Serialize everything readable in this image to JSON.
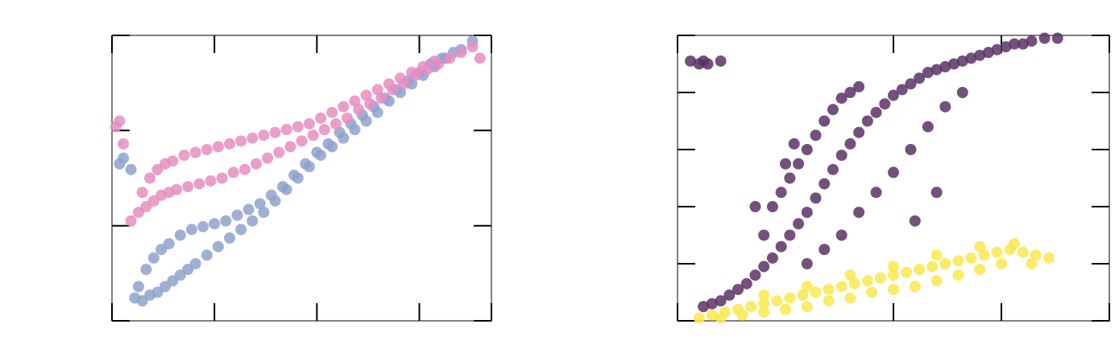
{
  "chart_data": [
    {
      "type": "scatter",
      "title": "",
      "xlabel": "",
      "ylabel": "",
      "xlim": [
        0,
        1
      ],
      "ylim": [
        0,
        1
      ],
      "grid": false,
      "legend": "none",
      "tick_labels_shown": false,
      "series": [
        {
          "color": "#8ea2cc",
          "points": [
            [
              0.06,
              0.08
            ],
            [
              0.08,
              0.07
            ],
            [
              0.1,
              0.09
            ],
            [
              0.12,
              0.1
            ],
            [
              0.14,
              0.12
            ],
            [
              0.16,
              0.14
            ],
            [
              0.18,
              0.16
            ],
            [
              0.2,
              0.18
            ],
            [
              0.22,
              0.2
            ],
            [
              0.25,
              0.23
            ],
            [
              0.28,
              0.26
            ],
            [
              0.31,
              0.29
            ],
            [
              0.34,
              0.32
            ],
            [
              0.37,
              0.35
            ],
            [
              0.4,
              0.38
            ],
            [
              0.43,
              0.42
            ],
            [
              0.46,
              0.46
            ],
            [
              0.49,
              0.5
            ],
            [
              0.52,
              0.54
            ],
            [
              0.55,
              0.58
            ],
            [
              0.58,
              0.61
            ],
            [
              0.61,
              0.64
            ],
            [
              0.64,
              0.67
            ],
            [
              0.67,
              0.7
            ],
            [
              0.7,
              0.73
            ],
            [
              0.73,
              0.77
            ],
            [
              0.76,
              0.8
            ],
            [
              0.79,
              0.83
            ],
            [
              0.82,
              0.86
            ],
            [
              0.85,
              0.89
            ],
            [
              0.88,
              0.92
            ],
            [
              0.9,
              0.94
            ],
            [
              0.92,
              0.95
            ],
            [
              0.95,
              0.98
            ],
            [
              0.07,
              0.12
            ],
            [
              0.09,
              0.18
            ],
            [
              0.11,
              0.22
            ],
            [
              0.13,
              0.25
            ],
            [
              0.15,
              0.27
            ],
            [
              0.18,
              0.3
            ],
            [
              0.21,
              0.32
            ],
            [
              0.24,
              0.33
            ],
            [
              0.27,
              0.34
            ],
            [
              0.3,
              0.35
            ],
            [
              0.33,
              0.37
            ],
            [
              0.36,
              0.39
            ],
            [
              0.39,
              0.41
            ],
            [
              0.42,
              0.44
            ],
            [
              0.45,
              0.47
            ],
            [
              0.48,
              0.51
            ],
            [
              0.51,
              0.55
            ],
            [
              0.54,
              0.59
            ],
            [
              0.57,
              0.62
            ],
            [
              0.6,
              0.66
            ],
            [
              0.63,
              0.69
            ],
            [
              0.66,
              0.72
            ],
            [
              0.69,
              0.75
            ],
            [
              0.72,
              0.78
            ],
            [
              0.75,
              0.81
            ],
            [
              0.78,
              0.84
            ],
            [
              0.81,
              0.87
            ],
            [
              0.84,
              0.9
            ],
            [
              0.87,
              0.92
            ],
            [
              0.02,
              0.55
            ],
            [
              0.03,
              0.57
            ],
            [
              0.05,
              0.53
            ]
          ]
        },
        {
          "color": "#e68dc1",
          "points": [
            [
              0.05,
              0.35
            ],
            [
              0.07,
              0.38
            ],
            [
              0.09,
              0.4
            ],
            [
              0.11,
              0.42
            ],
            [
              0.13,
              0.44
            ],
            [
              0.15,
              0.45
            ],
            [
              0.17,
              0.46
            ],
            [
              0.2,
              0.47
            ],
            [
              0.23,
              0.48
            ],
            [
              0.26,
              0.49
            ],
            [
              0.29,
              0.5
            ],
            [
              0.32,
              0.52
            ],
            [
              0.35,
              0.53
            ],
            [
              0.38,
              0.55
            ],
            [
              0.41,
              0.57
            ],
            [
              0.44,
              0.59
            ],
            [
              0.47,
              0.61
            ],
            [
              0.5,
              0.63
            ],
            [
              0.53,
              0.65
            ],
            [
              0.56,
              0.67
            ],
            [
              0.59,
              0.69
            ],
            [
              0.62,
              0.71
            ],
            [
              0.65,
              0.74
            ],
            [
              0.68,
              0.76
            ],
            [
              0.71,
              0.78
            ],
            [
              0.74,
              0.81
            ],
            [
              0.77,
              0.83
            ],
            [
              0.8,
              0.86
            ],
            [
              0.83,
              0.88
            ],
            [
              0.86,
              0.9
            ],
            [
              0.89,
              0.92
            ],
            [
              0.92,
              0.94
            ],
            [
              0.95,
              0.96
            ],
            [
              0.97,
              0.92
            ],
            [
              0.08,
              0.45
            ],
            [
              0.1,
              0.5
            ],
            [
              0.12,
              0.53
            ],
            [
              0.14,
              0.55
            ],
            [
              0.16,
              0.56
            ],
            [
              0.19,
              0.58
            ],
            [
              0.22,
              0.59
            ],
            [
              0.25,
              0.6
            ],
            [
              0.28,
              0.61
            ],
            [
              0.31,
              0.62
            ],
            [
              0.34,
              0.63
            ],
            [
              0.37,
              0.64
            ],
            [
              0.4,
              0.65
            ],
            [
              0.43,
              0.66
            ],
            [
              0.46,
              0.67
            ],
            [
              0.49,
              0.68
            ],
            [
              0.52,
              0.69
            ],
            [
              0.55,
              0.71
            ],
            [
              0.58,
              0.73
            ],
            [
              0.61,
              0.75
            ],
            [
              0.64,
              0.77
            ],
            [
              0.67,
              0.79
            ],
            [
              0.7,
              0.81
            ],
            [
              0.73,
              0.83
            ],
            [
              0.76,
              0.85
            ],
            [
              0.79,
              0.87
            ],
            [
              0.82,
              0.89
            ],
            [
              0.85,
              0.91
            ],
            [
              0.01,
              0.68
            ],
            [
              0.02,
              0.7
            ],
            [
              0.03,
              0.62
            ]
          ]
        }
      ]
    },
    {
      "type": "scatter",
      "title": "",
      "xlabel": "",
      "ylabel": "",
      "xlim": [
        0,
        1
      ],
      "ylim": [
        0,
        1
      ],
      "grid": false,
      "legend": "none",
      "tick_labels_shown": false,
      "series": [
        {
          "color": "#5a3265",
          "points": [
            [
              0.06,
              0.05
            ],
            [
              0.08,
              0.06
            ],
            [
              0.1,
              0.07
            ],
            [
              0.12,
              0.09
            ],
            [
              0.14,
              0.11
            ],
            [
              0.16,
              0.13
            ],
            [
              0.18,
              0.16
            ],
            [
              0.2,
              0.19
            ],
            [
              0.22,
              0.22
            ],
            [
              0.24,
              0.26
            ],
            [
              0.26,
              0.3
            ],
            [
              0.28,
              0.34
            ],
            [
              0.3,
              0.38
            ],
            [
              0.32,
              0.43
            ],
            [
              0.34,
              0.48
            ],
            [
              0.36,
              0.53
            ],
            [
              0.38,
              0.58
            ],
            [
              0.4,
              0.62
            ],
            [
              0.42,
              0.66
            ],
            [
              0.44,
              0.7
            ],
            [
              0.46,
              0.73
            ],
            [
              0.48,
              0.76
            ],
            [
              0.5,
              0.79
            ],
            [
              0.52,
              0.81
            ],
            [
              0.54,
              0.83
            ],
            [
              0.56,
              0.85
            ],
            [
              0.58,
              0.87
            ],
            [
              0.6,
              0.88
            ],
            [
              0.62,
              0.89
            ],
            [
              0.64,
              0.9
            ],
            [
              0.66,
              0.91
            ],
            [
              0.68,
              0.92
            ],
            [
              0.7,
              0.93
            ],
            [
              0.72,
              0.94
            ],
            [
              0.74,
              0.95
            ],
            [
              0.76,
              0.96
            ],
            [
              0.78,
              0.97
            ],
            [
              0.8,
              0.97
            ],
            [
              0.82,
              0.98
            ],
            [
              0.85,
              0.99
            ],
            [
              0.88,
              0.99
            ],
            [
              0.2,
              0.3
            ],
            [
              0.22,
              0.4
            ],
            [
              0.24,
              0.45
            ],
            [
              0.26,
              0.5
            ],
            [
              0.28,
              0.55
            ],
            [
              0.3,
              0.6
            ],
            [
              0.32,
              0.65
            ],
            [
              0.34,
              0.7
            ],
            [
              0.36,
              0.74
            ],
            [
              0.38,
              0.78
            ],
            [
              0.4,
              0.8
            ],
            [
              0.42,
              0.82
            ],
            [
              0.3,
              0.2
            ],
            [
              0.34,
              0.25
            ],
            [
              0.38,
              0.3
            ],
            [
              0.42,
              0.38
            ],
            [
              0.46,
              0.45
            ],
            [
              0.5,
              0.52
            ],
            [
              0.54,
              0.6
            ],
            [
              0.58,
              0.68
            ],
            [
              0.62,
              0.75
            ],
            [
              0.66,
              0.8
            ],
            [
              0.25,
              0.55
            ],
            [
              0.27,
              0.62
            ],
            [
              0.18,
              0.4
            ],
            [
              0.55,
              0.35
            ],
            [
              0.6,
              0.45
            ],
            [
              0.05,
              0.9
            ],
            [
              0.06,
              0.91
            ],
            [
              0.07,
              0.9
            ],
            [
              0.03,
              0.91
            ],
            [
              0.1,
              0.91
            ]
          ]
        },
        {
          "color": "#f9e84f",
          "points": [
            [
              0.05,
              0.01
            ],
            [
              0.08,
              0.02
            ],
            [
              0.11,
              0.03
            ],
            [
              0.14,
              0.04
            ],
            [
              0.17,
              0.05
            ],
            [
              0.2,
              0.06
            ],
            [
              0.23,
              0.07
            ],
            [
              0.26,
              0.08
            ],
            [
              0.29,
              0.09
            ],
            [
              0.32,
              0.1
            ],
            [
              0.35,
              0.11
            ],
            [
              0.38,
              0.12
            ],
            [
              0.41,
              0.13
            ],
            [
              0.44,
              0.14
            ],
            [
              0.47,
              0.15
            ],
            [
              0.5,
              0.16
            ],
            [
              0.53,
              0.17
            ],
            [
              0.56,
              0.18
            ],
            [
              0.59,
              0.19
            ],
            [
              0.62,
              0.2
            ],
            [
              0.65,
              0.21
            ],
            [
              0.68,
              0.22
            ],
            [
              0.71,
              0.23
            ],
            [
              0.74,
              0.24
            ],
            [
              0.77,
              0.25
            ],
            [
              0.8,
              0.24
            ],
            [
              0.83,
              0.23
            ],
            [
              0.86,
              0.22
            ],
            [
              0.1,
              0.01
            ],
            [
              0.15,
              0.02
            ],
            [
              0.2,
              0.03
            ],
            [
              0.25,
              0.04
            ],
            [
              0.3,
              0.05
            ],
            [
              0.35,
              0.07
            ],
            [
              0.4,
              0.08
            ],
            [
              0.45,
              0.1
            ],
            [
              0.5,
              0.11
            ],
            [
              0.55,
              0.12
            ],
            [
              0.6,
              0.14
            ],
            [
              0.65,
              0.16
            ],
            [
              0.7,
              0.18
            ],
            [
              0.75,
              0.2
            ],
            [
              0.2,
              0.09
            ],
            [
              0.3,
              0.12
            ],
            [
              0.4,
              0.16
            ],
            [
              0.5,
              0.19
            ],
            [
              0.6,
              0.23
            ],
            [
              0.7,
              0.26
            ],
            [
              0.78,
              0.27
            ],
            [
              0.82,
              0.2
            ]
          ]
        }
      ]
    }
  ]
}
